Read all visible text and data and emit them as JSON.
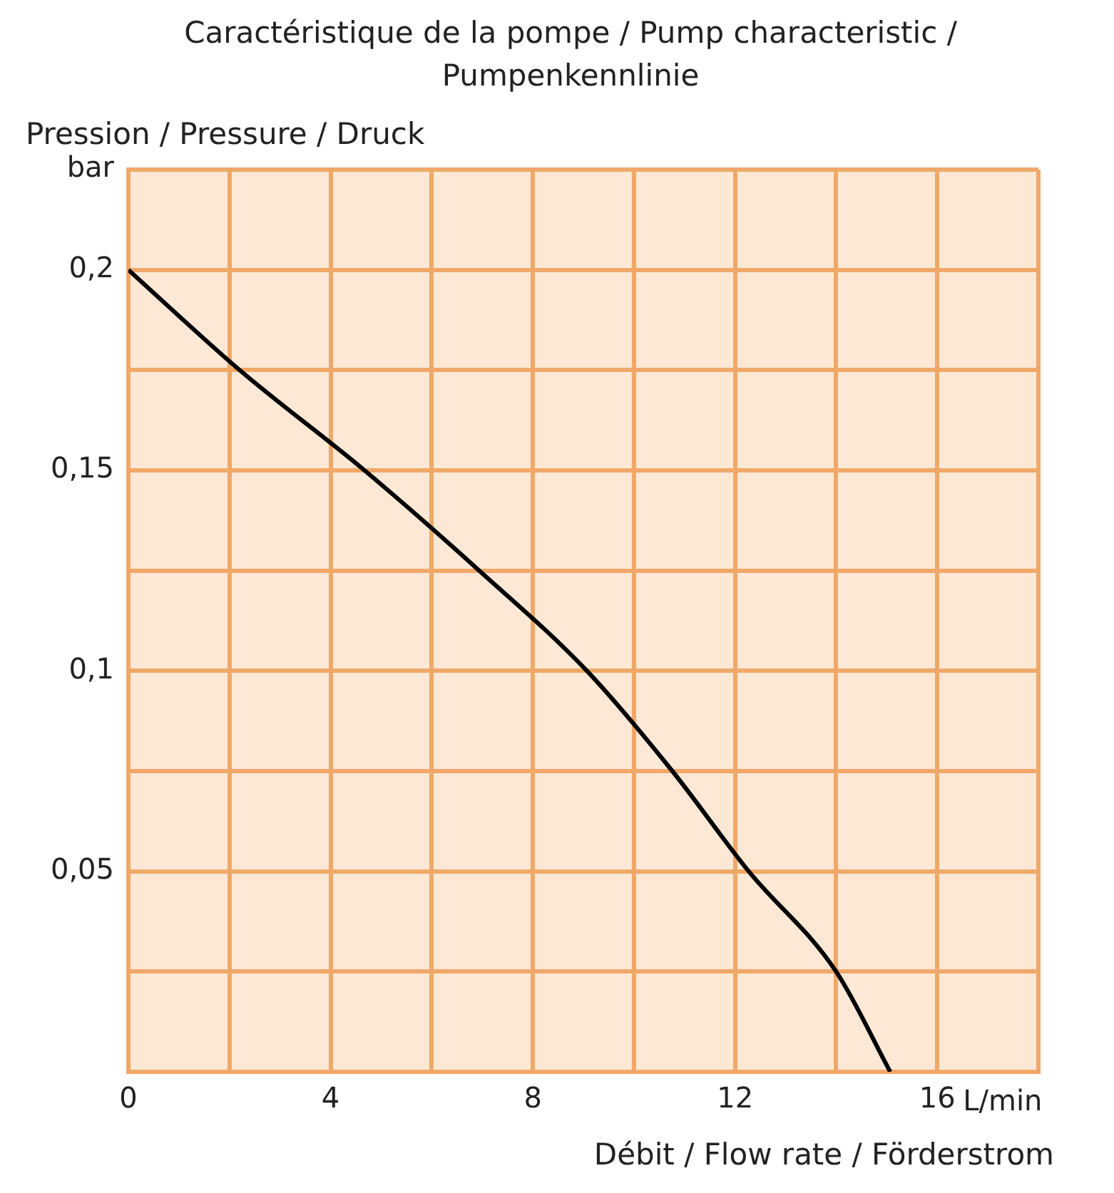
{
  "chart_data": {
    "type": "line",
    "title": "Caractéristique de la pompe / Pump characteristic / Pumpenkennlinie",
    "ylabel": "Pression / Pressure / Druck",
    "xlabel": "Débit / Flow rate / Förderstrom",
    "annotations": [
      "L/min"
    ],
    "x": [
      0,
      2.2,
      4.67,
      6.94,
      9.07,
      10.76,
      12.27,
      14.0,
      15.07
    ],
    "series": [
      {
        "color": "#000000",
        "values": [
          0.2,
          0.175,
          0.15,
          0.125,
          0.1,
          0.075,
          0.05,
          0.025,
          0
        ]
      }
    ],
    "xlim": [
      0,
      18
    ],
    "xticks": [
      0,
      {
        "value": 2,
        "label": null
      },
      4,
      {
        "value": 6,
        "label": null
      },
      8,
      {
        "value": 10,
        "label": null
      },
      12,
      {
        "value": 14,
        "label": null
      },
      16,
      {
        "value": 18,
        "label": null
      }
    ],
    "ylim": [
      0,
      0.225
    ],
    "yticks": [
      {
        "value": 0,
        "label": null
      },
      {
        "value": 0.025,
        "label": null
      },
      {
        "value": 0.05,
        "label": "0,05"
      },
      {
        "value": 0.075,
        "label": null
      },
      {
        "value": 0.1,
        "label": "0,1"
      },
      {
        "value": 0.125,
        "label": null
      },
      {
        "value": 0.15,
        "label": "0,15"
      },
      {
        "value": 0.175,
        "label": null
      },
      {
        "value": 0.2,
        "label": "0,2"
      },
      {
        "value": 0.225,
        "label": "bar"
      }
    ],
    "grid": true,
    "marker": "none",
    "line_style": "solid",
    "legend": false
  }
}
